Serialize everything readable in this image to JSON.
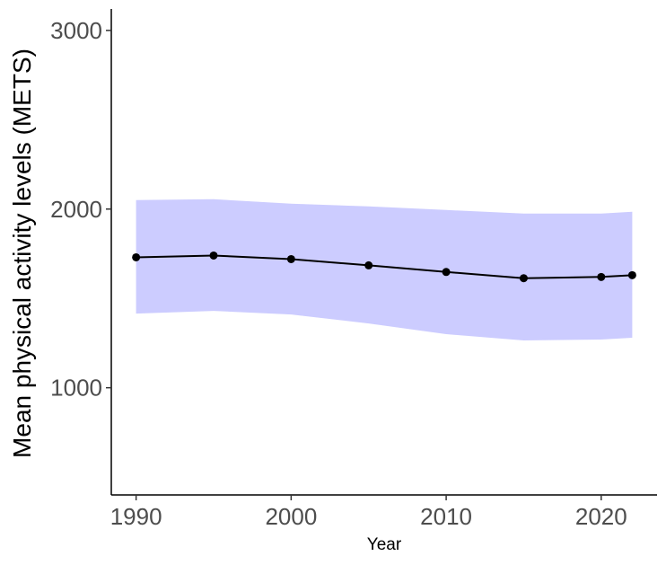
{
  "chart_data": {
    "type": "line",
    "title": "",
    "xlabel": "Year",
    "ylabel": "Mean physical activity levels (METS)",
    "xlim": [
      1988.4,
      2023.6
    ],
    "ylim": [
      400,
      3120
    ],
    "x_ticks": [
      1990,
      2000,
      2010,
      2020
    ],
    "y_ticks": [
      1000,
      2000,
      3000
    ],
    "grid": false,
    "legend": "none",
    "series": [
      {
        "x": [
          1990,
          1995,
          2000,
          2005,
          2010,
          2015,
          2020,
          2022
        ],
        "values": [
          1730,
          1740,
          1720,
          1685,
          1648,
          1613,
          1620,
          1630
        ],
        "color": "#000000"
      }
    ],
    "ribbon": {
      "x": [
        1990,
        1995,
        2000,
        2005,
        2010,
        2015,
        2020,
        2022
      ],
      "lower": [
        1415,
        1430,
        1410,
        1360,
        1300,
        1265,
        1270,
        1280
      ],
      "upper": [
        2050,
        2055,
        2030,
        2015,
        1995,
        1975,
        1975,
        1985
      ],
      "color": "#ccccff"
    }
  }
}
